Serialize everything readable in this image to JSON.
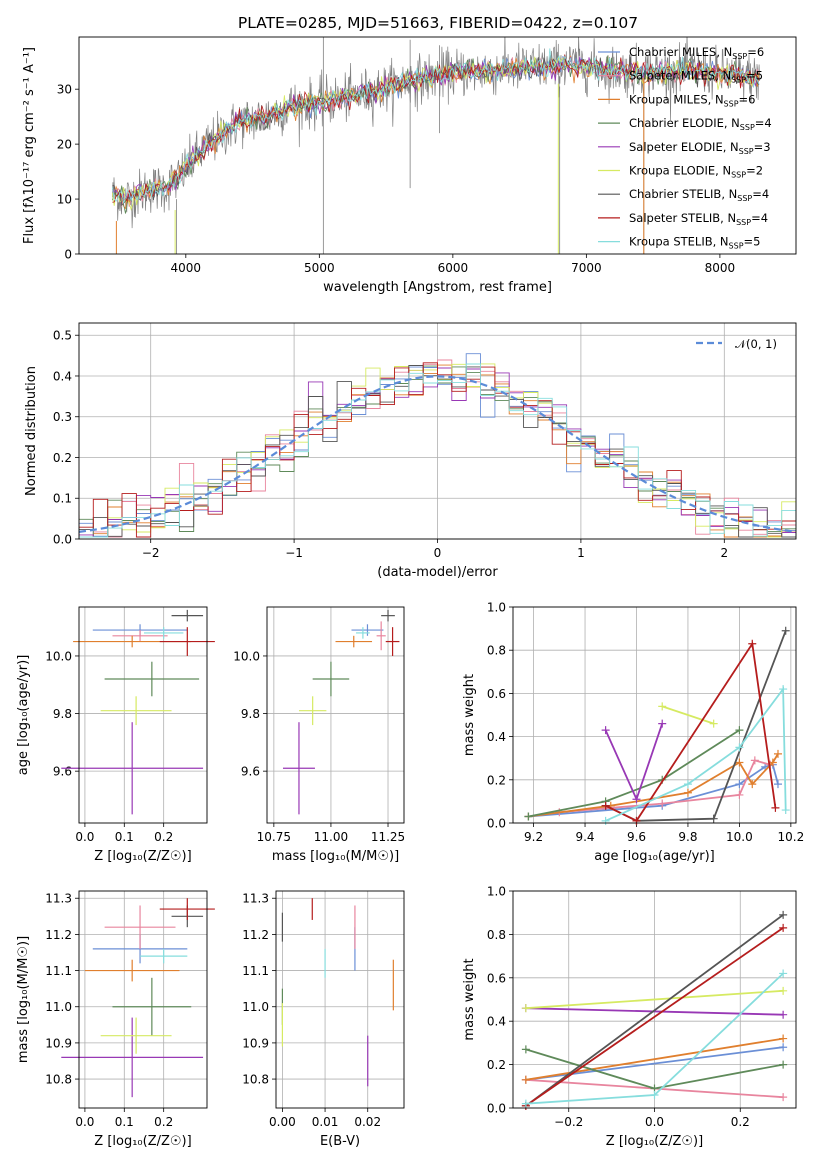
{
  "title": "PLATE=0285, MJD=51663, FIBERID=0422, z=0.107",
  "colors": {
    "chabrier_miles": "#6b8fd6",
    "salpeter_miles": "#e8859e",
    "kroupa_miles": "#e07f2e",
    "chabrier_elodie": "#5f8a5a",
    "salpeter_elodie": "#9838b5",
    "kroupa_elodie": "#d6ea62",
    "chabrier_stelib": "#555555",
    "salpeter_stelib": "#b51d1d",
    "kroupa_stelib": "#86dddd",
    "normal": "#5b8bd8",
    "grid": "#b0b0b0",
    "data_spectrum": "#808080"
  },
  "chart_data": [
    {
      "id": "spectrum",
      "type": "line",
      "title": "PLATE=0285, MJD=51663, FIBERID=0422, z=0.107",
      "xlabel": "wavelength [Angstrom, rest frame]",
      "ylabel": "Flux [fλ10⁻¹⁷ erg cm⁻² s⁻¹ A⁻¹]",
      "xlim": [
        3200,
        8570
      ],
      "ylim": [
        0,
        39.5
      ],
      "xticks": [
        4000,
        5000,
        6000,
        7000,
        8000
      ],
      "yticks": [
        0,
        10,
        20,
        30
      ],
      "grid": false,
      "legend_position": "top-right",
      "continuum": {
        "x": [
          3450,
          3550,
          3650,
          3750,
          3850,
          3950,
          4050,
          4150,
          4250,
          4400,
          4600,
          4800,
          5000,
          5200,
          5400,
          5600,
          5800,
          6000,
          6300,
          6600,
          6900,
          7200,
          7500,
          7800,
          8100,
          8300
        ],
        "y": [
          11,
          10,
          11,
          12,
          12,
          14,
          17,
          19.5,
          21.5,
          24,
          25,
          27,
          27.5,
          28.5,
          29.5,
          31,
          32,
          33,
          33.5,
          34,
          34.5,
          33.5,
          33,
          33.5,
          32.5,
          32
        ]
      },
      "legend": [
        {
          "name": "Chabrier MILES, N_SSP=6",
          "prefix": "Chabrier MILES, N",
          "sub": "SSP",
          "suffix": "=6"
        },
        {
          "name": "Salpeter MILES, N_SSP=5",
          "prefix": "Salpeter MILES, N",
          "sub": "SSP",
          "suffix": "=5"
        },
        {
          "name": "Kroupa MILES, N_SSP=6",
          "prefix": "Kroupa MILES, N",
          "sub": "SSP",
          "suffix": "=6"
        },
        {
          "name": "Chabrier ELODIE, N_SSP=4",
          "prefix": "Chabrier ELODIE, N",
          "sub": "SSP",
          "suffix": "=4"
        },
        {
          "name": "Salpeter ELODIE, N_SSP=3",
          "prefix": "Salpeter ELODIE, N",
          "sub": "SSP",
          "suffix": "=3"
        },
        {
          "name": "Kroupa ELODIE, N_SSP=2",
          "prefix": "Kroupa ELODIE, N",
          "sub": "SSP",
          "suffix": "=2"
        },
        {
          "name": "Chabrier STELIB, N_SSP=4",
          "prefix": "Chabrier STELIB, N",
          "sub": "SSP",
          "suffix": "=4"
        },
        {
          "name": "Salpeter STELIB, N_SSP=4",
          "prefix": "Salpeter STELIB, N",
          "sub": "SSP",
          "suffix": "=4"
        },
        {
          "name": "Kroupa STELIB, N_SSP=5",
          "prefix": "Kroupa STELIB, N",
          "sub": "SSP",
          "suffix": "=5"
        }
      ]
    },
    {
      "id": "residuals",
      "type": "histogram",
      "xlabel": "(data-model)/error",
      "ylabel": "Normed distribution",
      "xlim": [
        -2.5,
        2.5
      ],
      "ylim": [
        0,
        0.53
      ],
      "xticks": [
        -2,
        -1,
        0,
        1,
        2
      ],
      "yticks": [
        0.0,
        0.1,
        0.2,
        0.3,
        0.4,
        0.5
      ],
      "grid": true,
      "legend": "𝒩(0, 1)",
      "legend_position": "top-right",
      "bin_width": 0.1
    },
    {
      "id": "age_vs_Z",
      "type": "errorbar",
      "xlabel": "Z [log₁₀(Z/Z☉)]",
      "ylabel": "age  [log₁₀(age/yr)]",
      "xlim": [
        -0.015,
        0.31
      ],
      "ylim": [
        9.42,
        10.17
      ],
      "xticks": [
        0.0,
        0.1,
        0.2
      ],
      "yticks": [
        9.6,
        9.8,
        10.0
      ],
      "grid": true,
      "points": [
        {
          "model": "chabrier_miles",
          "x": 0.14,
          "xerr": 0.12,
          "y": 10.09,
          "yerr": 0.02
        },
        {
          "model": "salpeter_miles",
          "x": 0.14,
          "xerr": 0.07,
          "y": 10.07,
          "yerr": 0.02
        },
        {
          "model": "kroupa_miles",
          "x": 0.12,
          "xerr": 0.15,
          "y": 10.05,
          "yerr": 0.02
        },
        {
          "model": "chabrier_elodie",
          "x": 0.17,
          "xerr": 0.12,
          "y": 9.92,
          "yerr": 0.06
        },
        {
          "model": "salpeter_elodie",
          "x": 0.12,
          "xerr": 0.18,
          "y": 9.61,
          "yerr": 0.16
        },
        {
          "model": "kroupa_elodie",
          "x": 0.13,
          "xerr": 0.09,
          "y": 9.81,
          "yerr": 0.05
        },
        {
          "model": "chabrier_stelib",
          "x": 0.26,
          "xerr": 0.04,
          "y": 10.14,
          "yerr": 0.02
        },
        {
          "model": "salpeter_stelib",
          "x": 0.26,
          "xerr": 0.07,
          "y": 10.05,
          "yerr": 0.05
        },
        {
          "model": "kroupa_stelib",
          "x": 0.2,
          "xerr": 0.05,
          "y": 10.08,
          "yerr": 0.02
        }
      ]
    },
    {
      "id": "age_vs_mass",
      "type": "errorbar",
      "xlabel": "mass [log₁₀(M/M☉)]",
      "ylabel": "",
      "xlim": [
        10.72,
        11.32
      ],
      "ylim": [
        9.42,
        10.17
      ],
      "xticks": [
        10.75,
        11.0,
        11.25
      ],
      "yticks": [
        9.6,
        9.8,
        10.0
      ],
      "grid": true,
      "points": [
        {
          "model": "chabrier_miles",
          "x": 11.16,
          "xerr": 0.07,
          "y": 10.09,
          "yerr": 0.02
        },
        {
          "model": "salpeter_miles",
          "x": 11.22,
          "xerr": 0.02,
          "y": 10.07,
          "yerr": 0.05
        },
        {
          "model": "kroupa_miles",
          "x": 11.1,
          "xerr": 0.08,
          "y": 10.05,
          "yerr": 0.02
        },
        {
          "model": "chabrier_elodie",
          "x": 11.0,
          "xerr": 0.08,
          "y": 9.92,
          "yerr": 0.06
        },
        {
          "model": "salpeter_elodie",
          "x": 10.86,
          "xerr": 0.07,
          "y": 9.61,
          "yerr": 0.16
        },
        {
          "model": "kroupa_elodie",
          "x": 10.92,
          "xerr": 0.06,
          "y": 9.81,
          "yerr": 0.05
        },
        {
          "model": "chabrier_stelib",
          "x": 11.25,
          "xerr": 0.03,
          "y": 10.14,
          "yerr": 0.02
        },
        {
          "model": "salpeter_stelib",
          "x": 11.27,
          "xerr": 0.03,
          "y": 10.05,
          "yerr": 0.05
        },
        {
          "model": "kroupa_stelib",
          "x": 11.14,
          "xerr": 0.03,
          "y": 10.08,
          "yerr": 0.02
        }
      ]
    },
    {
      "id": "weight_vs_age",
      "type": "line",
      "xlabel": "age  [log₁₀(age/yr)]",
      "ylabel": "mass weight",
      "xlim": [
        9.12,
        10.22
      ],
      "ylim": [
        0,
        1.0
      ],
      "xticks": [
        9.2,
        9.4,
        9.6,
        9.8,
        10.0,
        10.2
      ],
      "yticks": [
        0.0,
        0.2,
        0.4,
        0.6,
        0.8,
        1.0
      ],
      "grid": true,
      "series": [
        {
          "model": "chabrier_miles",
          "x": [
            9.18,
            9.7,
            10.0,
            10.1,
            10.13,
            10.15
          ],
          "y": [
            0.03,
            0.08,
            0.18,
            0.26,
            0.27,
            0.18
          ]
        },
        {
          "model": "salpeter_miles",
          "x": [
            9.3,
            9.7,
            10.0,
            10.06,
            10.12
          ],
          "y": [
            0.05,
            0.09,
            0.13,
            0.29,
            0.27
          ]
        },
        {
          "model": "kroupa_miles",
          "x": [
            9.18,
            9.5,
            9.8,
            10.0,
            10.05,
            10.13,
            10.15
          ],
          "y": [
            0.03,
            0.08,
            0.14,
            0.28,
            0.18,
            0.28,
            0.32
          ]
        },
        {
          "model": "chabrier_elodie",
          "x": [
            9.18,
            9.48,
            9.7,
            10.0
          ],
          "y": [
            0.03,
            0.1,
            0.2,
            0.43
          ]
        },
        {
          "model": "salpeter_elodie",
          "x": [
            9.48,
            9.6,
            9.7
          ],
          "y": [
            0.43,
            0.11,
            0.46
          ]
        },
        {
          "model": "kroupa_elodie",
          "x": [
            9.7,
            9.9
          ],
          "y": [
            0.54,
            0.46
          ]
        },
        {
          "model": "chabrier_stelib",
          "x": [
            9.48,
            9.6,
            9.9,
            10.18
          ],
          "y": [
            0.08,
            0.01,
            0.02,
            0.89
          ]
        },
        {
          "model": "salpeter_stelib",
          "x": [
            9.48,
            9.6,
            10.05,
            10.14
          ],
          "y": [
            0.08,
            0.01,
            0.83,
            0.07
          ]
        },
        {
          "model": "kroupa_stelib",
          "x": [
            9.48,
            9.8,
            10.0,
            10.17,
            10.18
          ],
          "y": [
            0.01,
            0.18,
            0.35,
            0.62,
            0.06
          ]
        }
      ]
    },
    {
      "id": "mass_vs_Z",
      "type": "errorbar",
      "xlabel": "Z [log₁₀(Z/Z☉)]",
      "ylabel": "mass [log₁₀(M/M☉)]",
      "xlim": [
        -0.015,
        0.31
      ],
      "ylim": [
        10.72,
        11.32
      ],
      "xticks": [
        0.0,
        0.1,
        0.2
      ],
      "yticks": [
        10.8,
        10.9,
        11.0,
        11.1,
        11.2,
        11.3
      ],
      "grid": true,
      "points": [
        {
          "model": "chabrier_miles",
          "x": 0.14,
          "xerr": 0.12,
          "y": 11.16,
          "yerr": 0.04
        },
        {
          "model": "salpeter_miles",
          "x": 0.14,
          "xerr": 0.09,
          "y": 11.22,
          "yerr": 0.06
        },
        {
          "model": "kroupa_miles",
          "x": 0.12,
          "xerr": 0.12,
          "y": 11.1,
          "yerr": 0.03
        },
        {
          "model": "chabrier_elodie",
          "x": 0.17,
          "xerr": 0.1,
          "y": 11.0,
          "yerr": 0.08
        },
        {
          "model": "salpeter_elodie",
          "x": 0.12,
          "xerr": 0.18,
          "y": 10.86,
          "yerr": 0.11
        },
        {
          "model": "kroupa_elodie",
          "x": 0.13,
          "xerr": 0.09,
          "y": 10.92,
          "yerr": 0.05
        },
        {
          "model": "chabrier_stelib",
          "x": 0.26,
          "xerr": 0.04,
          "y": 11.25,
          "yerr": 0.03
        },
        {
          "model": "salpeter_stelib",
          "x": 0.26,
          "xerr": 0.07,
          "y": 11.27,
          "yerr": 0.03
        },
        {
          "model": "kroupa_stelib",
          "x": 0.2,
          "xerr": 0.06,
          "y": 11.14,
          "yerr": 0.02
        }
      ]
    },
    {
      "id": "mass_vs_ebv",
      "type": "errorbar",
      "xlabel": "E(B-V)",
      "ylabel": "",
      "xlim": [
        -0.0015,
        0.0285
      ],
      "ylim": [
        10.72,
        11.32
      ],
      "xticks": [
        0.0,
        0.01,
        0.02
      ],
      "yticks": [
        10.8,
        10.9,
        11.0,
        11.1,
        11.2,
        11.3
      ],
      "grid": true,
      "points": [
        {
          "model": "chabrier_miles",
          "x": 0.017,
          "y": 11.16,
          "yerr": 0.06
        },
        {
          "model": "salpeter_miles",
          "x": 0.017,
          "y": 11.22,
          "yerr": 0.06
        },
        {
          "model": "kroupa_miles",
          "x": 0.026,
          "y": 11.06,
          "yerr": 0.07
        },
        {
          "model": "chabrier_elodie",
          "x": 0.0,
          "y": 11.0,
          "yerr": 0.05
        },
        {
          "model": "salpeter_elodie",
          "x": 0.02,
          "y": 10.85,
          "yerr": 0.07
        },
        {
          "model": "kroupa_elodie",
          "x": 0.0,
          "y": 10.95,
          "yerr": 0.06
        },
        {
          "model": "chabrier_stelib",
          "x": 0.0,
          "y": 11.22,
          "yerr": 0.04
        },
        {
          "model": "salpeter_stelib",
          "x": 0.007,
          "y": 11.27,
          "yerr": 0.03
        },
        {
          "model": "kroupa_stelib",
          "x": 0.01,
          "y": 11.12,
          "yerr": 0.04
        }
      ]
    },
    {
      "id": "weight_vs_Z",
      "type": "line",
      "xlabel": "Z [log₁₀(Z/Z☉)]",
      "ylabel": "mass weight",
      "xlim": [
        -0.33,
        0.33
      ],
      "ylim": [
        0,
        1.0
      ],
      "xticks": [
        -0.2,
        0.0,
        0.2
      ],
      "yticks": [
        0.0,
        0.2,
        0.4,
        0.6,
        0.8,
        1.0
      ],
      "grid": true,
      "series": [
        {
          "model": "chabrier_miles",
          "x": [
            -0.3,
            0.3
          ],
          "y": [
            0.13,
            0.28
          ]
        },
        {
          "model": "salpeter_miles",
          "x": [
            -0.3,
            0.3
          ],
          "y": [
            0.13,
            0.05
          ]
        },
        {
          "model": "kroupa_miles",
          "x": [
            -0.3,
            0.3
          ],
          "y": [
            0.13,
            0.32
          ]
        },
        {
          "model": "chabrier_elodie",
          "x": [
            -0.3,
            0.0,
            0.3
          ],
          "y": [
            0.27,
            0.09,
            0.2
          ]
        },
        {
          "model": "salpeter_elodie",
          "x": [
            -0.3,
            0.3
          ],
          "y": [
            0.46,
            0.43
          ]
        },
        {
          "model": "kroupa_elodie",
          "x": [
            -0.3,
            0.3
          ],
          "y": [
            0.46,
            0.54
          ]
        },
        {
          "model": "chabrier_stelib",
          "x": [
            -0.3,
            0.3
          ],
          "y": [
            0.01,
            0.89
          ]
        },
        {
          "model": "salpeter_stelib",
          "x": [
            -0.3,
            0.3
          ],
          "y": [
            0.01,
            0.83
          ]
        },
        {
          "model": "kroupa_stelib",
          "x": [
            -0.3,
            0.0,
            0.3
          ],
          "y": [
            0.02,
            0.06,
            0.62
          ]
        }
      ]
    }
  ]
}
